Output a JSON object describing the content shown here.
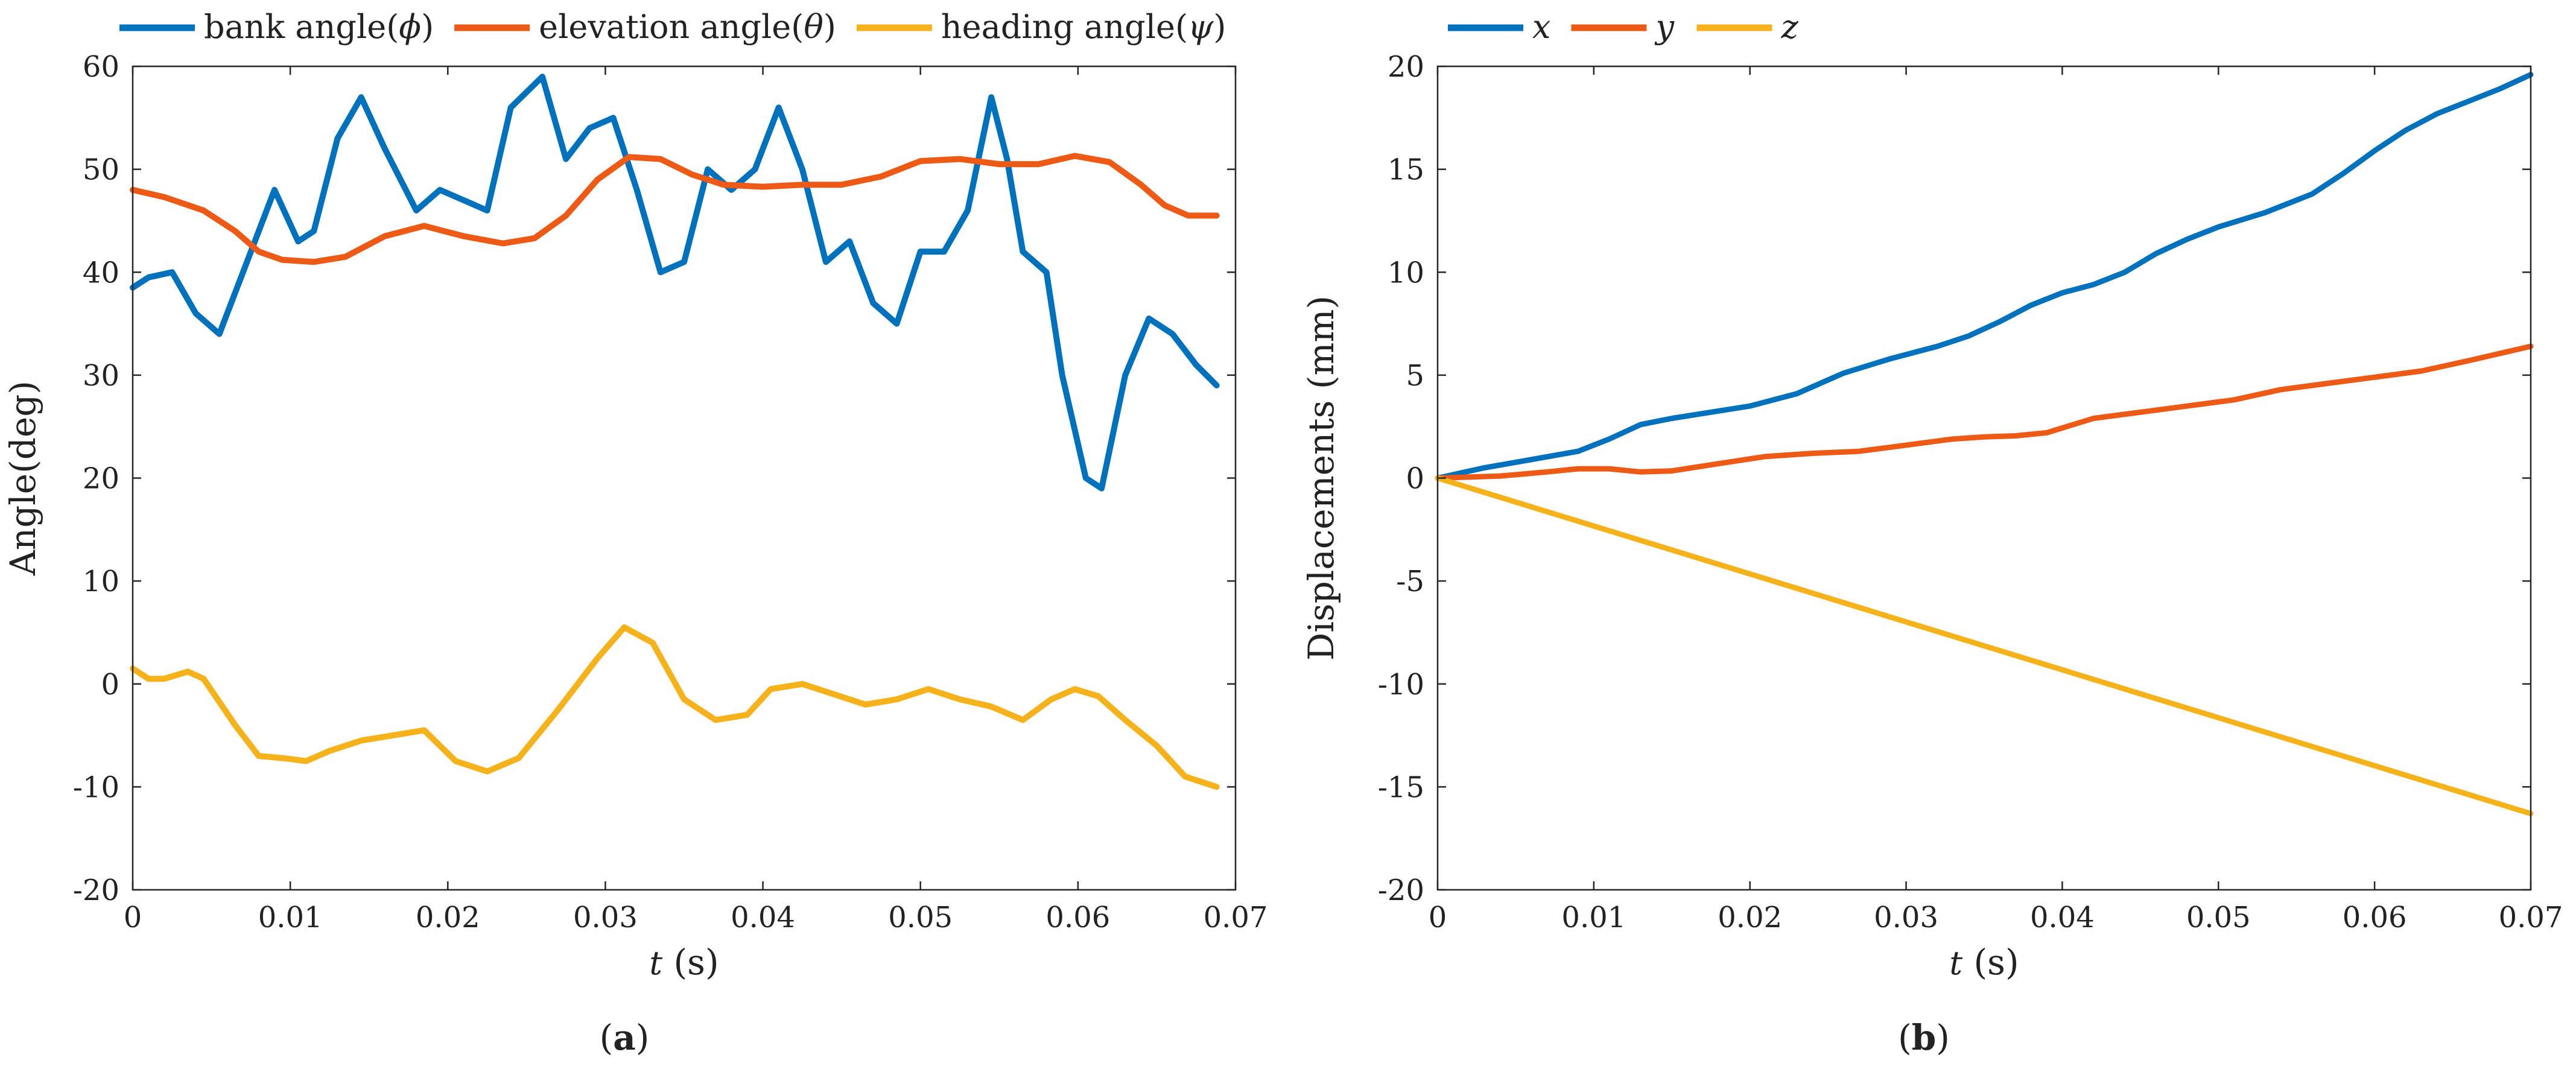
{
  "colors": {
    "blue": "#0072BD",
    "orange": "#ED5A16",
    "yellow": "#F5B21A"
  },
  "chart_data": [
    {
      "type": "line",
      "panel_label_prefix": "(",
      "panel_label_letter": "a",
      "panel_label_suffix": ")",
      "xlabel_var": "t",
      "xlabel_unit": " (s)",
      "ylabel": "Angle(deg)",
      "xlim": [
        0,
        0.07
      ],
      "ylim": [
        -20,
        60
      ],
      "xticks": [
        "0",
        "0.01",
        "0.02",
        "0.03",
        "0.04",
        "0.05",
        "0.06",
        "0.07"
      ],
      "yticks": [
        "-20",
        "-10",
        "0",
        "10",
        "20",
        "30",
        "40",
        "50",
        "60"
      ],
      "legend_position": "top",
      "series": [
        {
          "legend_prefix": "bank angle(",
          "legend_symbol": "ϕ",
          "legend_suffix": ")",
          "color": "#0072BD",
          "x": [
            0,
            0.001,
            0.0025,
            0.004,
            0.0055,
            0.007,
            0.009,
            0.0105,
            0.0115,
            0.013,
            0.0145,
            0.016,
            0.018,
            0.0195,
            0.021,
            0.0225,
            0.024,
            0.026,
            0.0275,
            0.029,
            0.0305,
            0.032,
            0.0335,
            0.035,
            0.0365,
            0.038,
            0.0395,
            0.041,
            0.0425,
            0.044,
            0.0455,
            0.047,
            0.0485,
            0.05,
            0.0515,
            0.053,
            0.0545,
            0.0555,
            0.0565,
            0.058,
            0.059,
            0.0605,
            0.0615,
            0.063,
            0.0645,
            0.066,
            0.0675,
            0.0688
          ],
          "y": [
            38.5,
            39.5,
            40,
            36,
            34,
            40,
            48,
            43,
            44,
            53,
            57,
            52,
            46,
            48,
            47,
            46,
            56,
            59,
            51,
            54,
            55,
            48,
            40,
            41,
            50,
            48,
            50,
            56,
            50,
            41,
            43,
            37,
            35,
            42,
            42,
            46,
            57,
            51,
            42,
            40,
            30,
            20,
            19,
            30,
            35.5,
            34,
            31,
            29
          ]
        },
        {
          "legend_prefix": "elevation angle(",
          "legend_symbol": "θ",
          "legend_suffix": ")",
          "color": "#ED5A16",
          "x": [
            0,
            0.002,
            0.0045,
            0.0065,
            0.008,
            0.0095,
            0.0115,
            0.0135,
            0.016,
            0.0185,
            0.021,
            0.0235,
            0.0255,
            0.0275,
            0.0295,
            0.0315,
            0.0335,
            0.0355,
            0.0375,
            0.04,
            0.0425,
            0.045,
            0.0475,
            0.05,
            0.0525,
            0.055,
            0.0575,
            0.0598,
            0.062,
            0.064,
            0.0655,
            0.067,
            0.0688
          ],
          "y": [
            48,
            47.3,
            46,
            44,
            42,
            41.2,
            41,
            41.5,
            43.5,
            44.5,
            43.5,
            42.8,
            43.3,
            45.5,
            49,
            51.2,
            51,
            49.5,
            48.5,
            48.3,
            48.5,
            48.5,
            49.3,
            50.8,
            51,
            50.5,
            50.5,
            51.3,
            50.7,
            48.5,
            46.5,
            45.5,
            45.5
          ]
        },
        {
          "legend_prefix": "heading angle(",
          "legend_symbol": "ψ",
          "legend_suffix": ")",
          "color": "#F5B21A",
          "x": [
            0,
            0.001,
            0.002,
            0.0035,
            0.0045,
            0.0065,
            0.008,
            0.0095,
            0.011,
            0.0125,
            0.0145,
            0.0165,
            0.0185,
            0.0205,
            0.0225,
            0.0245,
            0.027,
            0.0295,
            0.0312,
            0.033,
            0.035,
            0.037,
            0.039,
            0.0405,
            0.0425,
            0.0445,
            0.0465,
            0.0485,
            0.0505,
            0.0525,
            0.0545,
            0.0565,
            0.0583,
            0.0598,
            0.0613,
            0.063,
            0.065,
            0.0668,
            0.0688
          ],
          "y": [
            1.5,
            0.5,
            0.5,
            1.2,
            0.5,
            -4,
            -7,
            -7.2,
            -7.5,
            -6.5,
            -5.5,
            -5,
            -4.5,
            -7.5,
            -8.5,
            -7.2,
            -2.5,
            2.5,
            5.5,
            4,
            -1.5,
            -3.5,
            -3,
            -0.5,
            0,
            -1,
            -2,
            -1.5,
            -0.5,
            -1.5,
            -2.2,
            -3.5,
            -1.5,
            -0.5,
            -1.2,
            -3.5,
            -6,
            -9,
            -10
          ]
        }
      ]
    },
    {
      "type": "line",
      "panel_label_prefix": "(",
      "panel_label_letter": "b",
      "panel_label_suffix": ")",
      "xlabel_var": "t",
      "xlabel_unit": " (s)",
      "ylabel": "Displacements (mm)",
      "xlim": [
        0,
        0.07
      ],
      "ylim": [
        -20,
        20
      ],
      "xticks": [
        "0",
        "0.01",
        "0.02",
        "0.03",
        "0.04",
        "0.05",
        "0.06",
        "0.07"
      ],
      "yticks": [
        "-20",
        "-15",
        "-10",
        "-5",
        "0",
        "5",
        "10",
        "15",
        "20"
      ],
      "legend_position": "top",
      "series": [
        {
          "legend_symbol": "x",
          "color": "#0072BD",
          "x": [
            0,
            0.003,
            0.006,
            0.009,
            0.011,
            0.013,
            0.015,
            0.0175,
            0.02,
            0.023,
            0.026,
            0.029,
            0.032,
            0.034,
            0.036,
            0.038,
            0.04,
            0.042,
            0.044,
            0.046,
            0.048,
            0.05,
            0.053,
            0.056,
            0.058,
            0.06,
            0.062,
            0.064,
            0.066,
            0.068,
            0.07
          ],
          "y": [
            0,
            0.5,
            0.9,
            1.3,
            1.9,
            2.6,
            2.9,
            3.2,
            3.5,
            4.1,
            5.1,
            5.8,
            6.4,
            6.9,
            7.6,
            8.4,
            9,
            9.4,
            10,
            10.9,
            11.6,
            12.2,
            12.9,
            13.8,
            14.8,
            15.9,
            16.9,
            17.7,
            18.3,
            18.9,
            19.6
          ]
        },
        {
          "legend_symbol": "y",
          "color": "#ED5A16",
          "x": [
            0,
            0.004,
            0.007,
            0.009,
            0.011,
            0.013,
            0.015,
            0.018,
            0.021,
            0.024,
            0.027,
            0.03,
            0.033,
            0.035,
            0.037,
            0.039,
            0.042,
            0.045,
            0.048,
            0.051,
            0.054,
            0.057,
            0.06,
            0.063,
            0.066,
            0.07
          ],
          "y": [
            0,
            0.1,
            0.3,
            0.45,
            0.45,
            0.3,
            0.35,
            0.7,
            1.05,
            1.2,
            1.3,
            1.6,
            1.9,
            2.0,
            2.05,
            2.2,
            2.9,
            3.2,
            3.5,
            3.8,
            4.3,
            4.6,
            4.9,
            5.2,
            5.7,
            6.4
          ]
        },
        {
          "legend_symbol": "z",
          "color": "#F5B21A",
          "x": [
            0,
            0.07
          ],
          "y": [
            0,
            -16.3
          ]
        }
      ]
    }
  ]
}
